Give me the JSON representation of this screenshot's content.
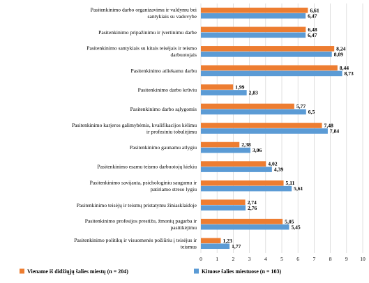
{
  "chart_data": {
    "type": "bar",
    "orientation": "horizontal",
    "categories": [
      [
        "Pasitenkinimo darbo organizavimu ir valdymu bei",
        "santykiais su vadovybe"
      ],
      [
        "Pasitenkinimo pripažinimu ir įvertinimu darbe"
      ],
      [
        "Pasitenkinimo santykiais su kitais teisėjais ir teismo",
        "darbuotojais"
      ],
      [
        "Pasitenkinimo atliekamu darbu"
      ],
      [
        "Pasitenkinimo darbo krūviu"
      ],
      [
        "Pasitenkinimo darbo sąlygomis"
      ],
      [
        "Pasitenkinimo karjeros galimybėmis, kvalifikacijos kėlimu",
        "ir profesiniu tobulėjimu"
      ],
      [
        "Pasitenkinimo gaunamu atlygiu"
      ],
      [
        "Pasitenkinimo esamu teismo darbuotojų kiekiu"
      ],
      [
        "Pasitenkinimo savijauta, psichologiniu saugumu ir",
        "patiriamo streso lygiu"
      ],
      [
        "Pasitenkinimo teisėjų ir teismų pristatymu žiniasklaidoje"
      ],
      [
        "Pasitenkinimo profesijos prestižu, žmonių pagarba ir",
        "pasitikėjimu"
      ],
      [
        "Pasitenkinimo politikų ir visuomenės požiūriu į teisėjus ir",
        "teismus"
      ]
    ],
    "series": [
      {
        "name": "Viename iš didžiųjų šalies miestų (n = 204)",
        "color": "#ed7d31",
        "values": [
          6.61,
          6.48,
          8.24,
          8.44,
          1.99,
          5.77,
          7.48,
          2.38,
          4.02,
          5.11,
          2.74,
          5.05,
          1.23
        ],
        "labels": [
          "6,61",
          "6,48",
          "8,24",
          "8,44",
          "1,99",
          "5,77",
          "7,48",
          "2,38",
          "4,02",
          "5,11",
          "2,74",
          "5,05",
          "1,23"
        ]
      },
      {
        "name": "Kituose šalies miestuose (n = 103)",
        "color": "#5b9bd5",
        "values": [
          6.47,
          6.47,
          8.09,
          8.73,
          2.83,
          6.5,
          7.84,
          3.06,
          4.39,
          5.61,
          2.76,
          5.45,
          1.77
        ],
        "labels": [
          "6,47",
          "6,47",
          "8,09",
          "8,73",
          "2,83",
          "6,5",
          "7,84",
          "3,06",
          "4,39",
          "5,61",
          "2,76",
          "5,45",
          "1,77"
        ]
      }
    ],
    "xlim": [
      0,
      10
    ],
    "xticks": [
      "0",
      "1",
      "2",
      "3",
      "4",
      "5",
      "6",
      "7",
      "8",
      "9",
      "10"
    ],
    "grid": true,
    "legend_position": "bottom"
  }
}
